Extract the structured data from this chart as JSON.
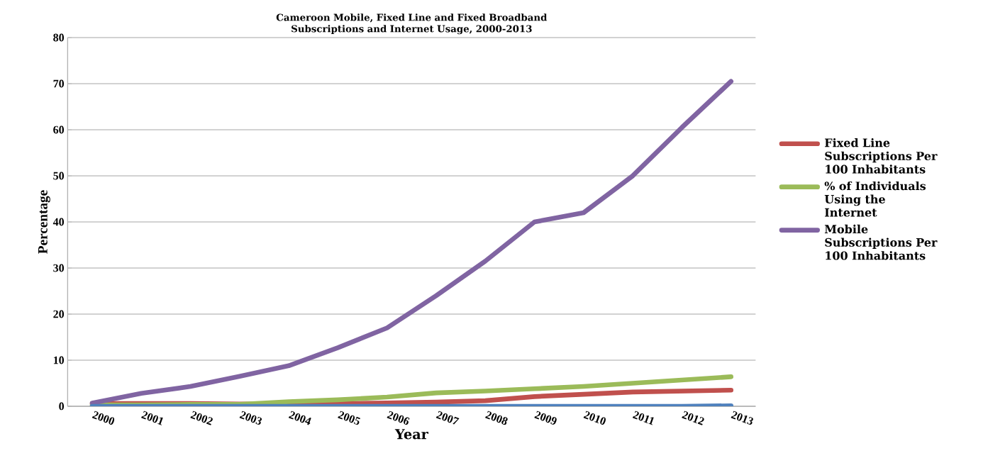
{
  "chart_data": {
    "type": "line",
    "title": "Cameroon Mobile, Fixed Line and Fixed Broadband Subscriptions and Internet Usage, 2000-2013",
    "xlabel": "Year",
    "ylabel": "Percentage",
    "categories": [
      "2000",
      "2001",
      "2002",
      "2003",
      "2004",
      "2005",
      "2006",
      "2007",
      "2008",
      "2009",
      "2010",
      "2011",
      "2012",
      "2013"
    ],
    "series": [
      {
        "name": "Fixed Line Subscriptions Per 100 Inhabitants",
        "color": "#c0504d",
        "values": [
          0.6,
          0.6,
          0.6,
          0.5,
          0.5,
          0.6,
          0.7,
          0.9,
          1.2,
          2.1,
          2.6,
          3.1,
          3.3,
          3.5
        ]
      },
      {
        "name": "%  of Individuals Using the Internet",
        "color": "#9bbb59",
        "values": [
          0.3,
          0.3,
          0.4,
          0.4,
          1.0,
          1.4,
          2.0,
          2.9,
          3.3,
          3.8,
          4.3,
          5.0,
          5.7,
          6.4
        ]
      },
      {
        "name": "Mobile Subscriptions Per 100 Inhabitants",
        "color": "#8064a2",
        "values": [
          0.7,
          2.8,
          4.3,
          6.5,
          8.8,
          12.7,
          17,
          24,
          31.5,
          40,
          42,
          50,
          60.5,
          70.5
        ]
      },
      {
        "color": "#4f81bd",
        "values": [
          0,
          0,
          0,
          0,
          0,
          0,
          0,
          0,
          0,
          0,
          0,
          0,
          0,
          0.1
        ]
      }
    ],
    "ylim": [
      0,
      80
    ],
    "yticks": [
      0,
      10,
      20,
      30,
      40,
      50,
      60,
      70,
      80
    ],
    "grid": "y",
    "legend": "right"
  }
}
